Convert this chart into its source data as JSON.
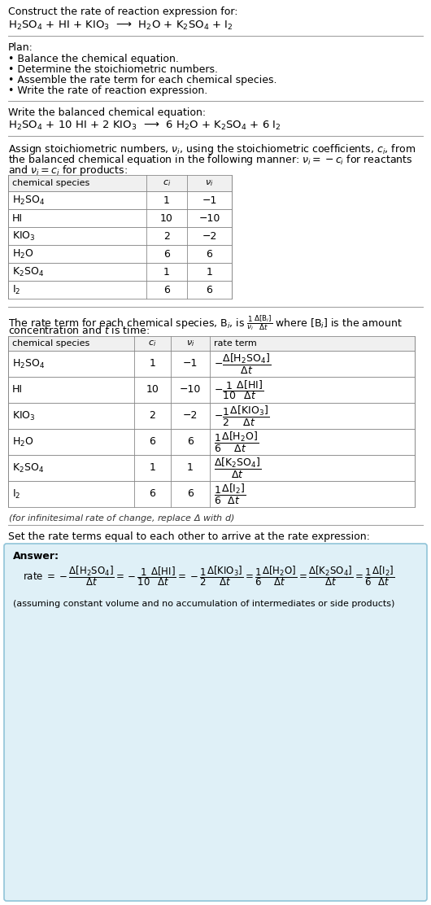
{
  "bg_color": "#ffffff",
  "title_line1": "Construct the rate of reaction expression for:",
  "reaction_unbalanced": "H$_2$SO$_4$ + HI + KIO$_3$  ⟶  H$_2$O + K$_2$SO$_4$ + I$_2$",
  "plan_header": "Plan:",
  "plan_items": [
    "• Balance the chemical equation.",
    "• Determine the stoichiometric numbers.",
    "• Assemble the rate term for each chemical species.",
    "• Write the rate of reaction expression."
  ],
  "balanced_header": "Write the balanced chemical equation:",
  "reaction_balanced": "H$_2$SO$_4$ + 10 HI + 2 KIO$_3$  ⟶  6 H$_2$O + K$_2$SO$_4$ + 6 I$_2$",
  "stoich_intro1": "Assign stoichiometric numbers, $\\nu_i$, using the stoichiometric coefficients, $c_i$, from",
  "stoich_intro2": "the balanced chemical equation in the following manner: $\\nu_i = -c_i$ for reactants",
  "stoich_intro3": "and $\\nu_i = c_i$ for products:",
  "table1_headers": [
    "chemical species",
    "$c_i$",
    "$\\nu_i$"
  ],
  "table1_data": [
    [
      "H$_2$SO$_4$",
      "1",
      "−1"
    ],
    [
      "HI",
      "10",
      "−10"
    ],
    [
      "KIO$_3$",
      "2",
      "−2"
    ],
    [
      "H$_2$O",
      "6",
      "6"
    ],
    [
      "K$_2$SO$_4$",
      "1",
      "1"
    ],
    [
      "I$_2$",
      "6",
      "6"
    ]
  ],
  "rate_intro1": "The rate term for each chemical species, B$_i$, is $\\frac{1}{\\nu_i}\\frac{\\Delta[\\mathrm{B}_i]}{\\Delta t}$ where [B$_i$] is the amount",
  "rate_intro2": "concentration and $t$ is time:",
  "table2_headers": [
    "chemical species",
    "$c_i$",
    "$\\nu_i$",
    "rate term"
  ],
  "table2_species": [
    "H$_2$SO$_4$",
    "HI",
    "KIO$_3$",
    "H$_2$O",
    "K$_2$SO$_4$",
    "I$_2$"
  ],
  "table2_ci": [
    "1",
    "10",
    "2",
    "6",
    "1",
    "6"
  ],
  "table2_vi": [
    "−1",
    "−10",
    "−2",
    "6",
    "1",
    "6"
  ],
  "table2_rate_num": [
    "−",
    "−",
    "−",
    "",
    "",
    ""
  ],
  "table2_rate_frac": [
    "",
    "\\frac{1}{10}",
    "\\frac{1}{2}",
    "\\frac{1}{6}",
    "",
    "\\frac{1}{6}"
  ],
  "table2_rate_bracket": [
    "\\frac{\\Delta[\\mathrm{H_2SO_4}]}{\\Delta t}",
    "\\frac{\\Delta[\\mathrm{HI}]}{\\Delta t}",
    "\\frac{\\Delta[\\mathrm{KIO_3}]}{\\Delta t}",
    "\\frac{\\Delta[\\mathrm{H_2O}]}{\\Delta t}",
    "\\frac{\\Delta[\\mathrm{K_2SO_4}]}{\\Delta t}",
    "\\frac{\\Delta[\\mathrm{I_2}]}{\\Delta t}"
  ],
  "infinitesimal_note": "(for infinitesimal rate of change, replace Δ with $d$)",
  "set_equal_text": "Set the rate terms equal to each other to arrive at the rate expression:",
  "answer_label": "Answer:",
  "answer_box_color": "#dff0f7",
  "answer_box_border": "#90c4d8",
  "answer_footnote": "(assuming constant volume and no accumulation of intermediates or side products)"
}
